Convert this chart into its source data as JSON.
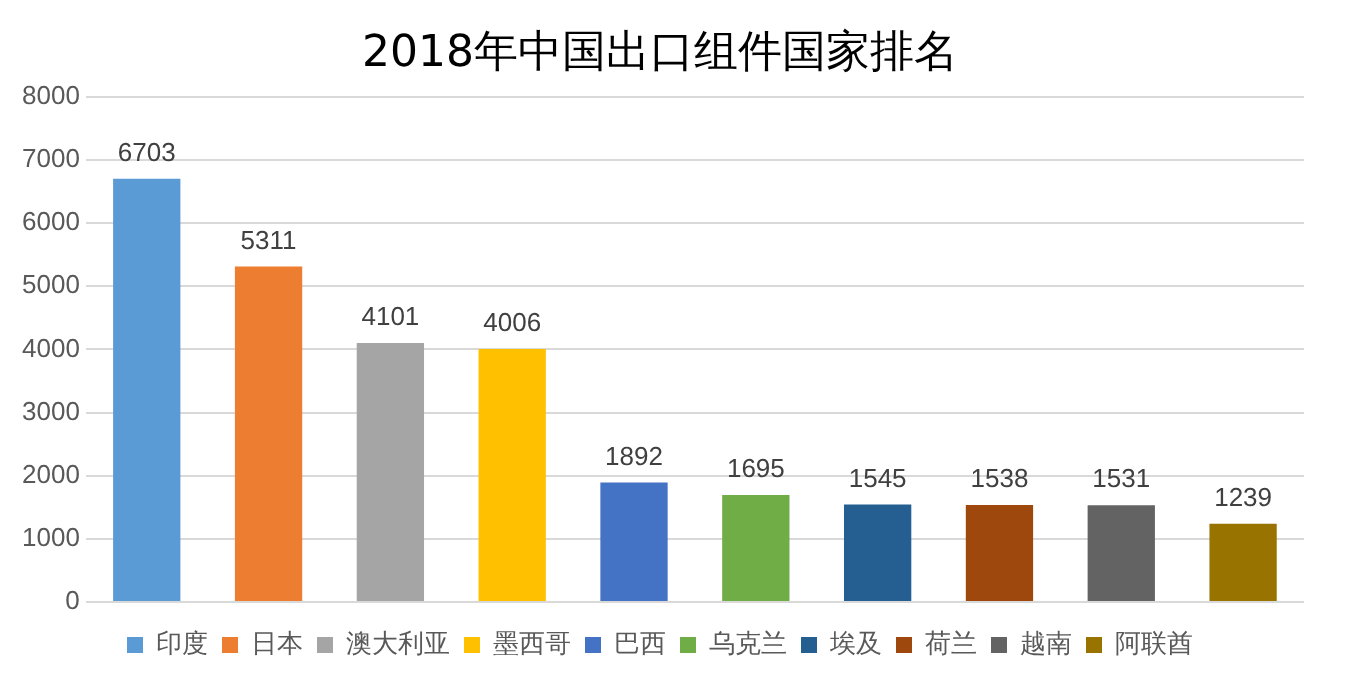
{
  "chart_data": {
    "type": "bar",
    "title": "2018年中国出口组件国家排名",
    "categories": [
      null,
      null,
      null,
      null,
      null,
      null,
      null,
      null,
      null,
      null
    ],
    "series": [
      {
        "name": "印度",
        "color": "#5b9bd5",
        "values": [
          6703,
          null,
          null,
          null,
          null,
          null,
          null,
          null,
          null,
          null
        ]
      },
      {
        "name": "日本",
        "color": "#ed7d31",
        "values": [
          null,
          5311,
          null,
          null,
          null,
          null,
          null,
          null,
          null,
          null
        ]
      },
      {
        "name": "澳大利亚",
        "color": "#a5a5a5",
        "values": [
          null,
          null,
          4101,
          null,
          null,
          null,
          null,
          null,
          null,
          null
        ]
      },
      {
        "name": "墨西哥",
        "color": "#ffc000",
        "values": [
          null,
          null,
          null,
          4006,
          null,
          null,
          null,
          null,
          null,
          null
        ]
      },
      {
        "name": "巴西",
        "color": "#4472c4",
        "values": [
          null,
          null,
          null,
          null,
          1892,
          null,
          null,
          null,
          null,
          null
        ]
      },
      {
        "name": "乌克兰",
        "color": "#70ad47",
        "values": [
          null,
          null,
          null,
          null,
          null,
          1695,
          null,
          null,
          null,
          null
        ]
      },
      {
        "name": "埃及",
        "color": "#255e91",
        "values": [
          null,
          null,
          null,
          null,
          null,
          null,
          1545,
          null,
          null,
          null
        ]
      },
      {
        "name": "荷兰",
        "color": "#9e480e",
        "values": [
          null,
          null,
          null,
          null,
          null,
          null,
          null,
          1538,
          null,
          null
        ]
      },
      {
        "name": "越南",
        "color": "#636363",
        "values": [
          null,
          null,
          null,
          null,
          null,
          null,
          null,
          null,
          1531,
          null
        ]
      },
      {
        "name": "阿联酋",
        "color": "#997300",
        "values": [
          null,
          null,
          null,
          null,
          null,
          null,
          null,
          null,
          null,
          1239
        ]
      }
    ],
    "ylim": [
      0,
      8000
    ],
    "yticks": [
      0,
      1000,
      2000,
      3000,
      4000,
      5000,
      6000,
      7000,
      8000
    ],
    "grid": "y",
    "legend": "bottom",
    "tick_labels": "y",
    "data_labels": true
  }
}
